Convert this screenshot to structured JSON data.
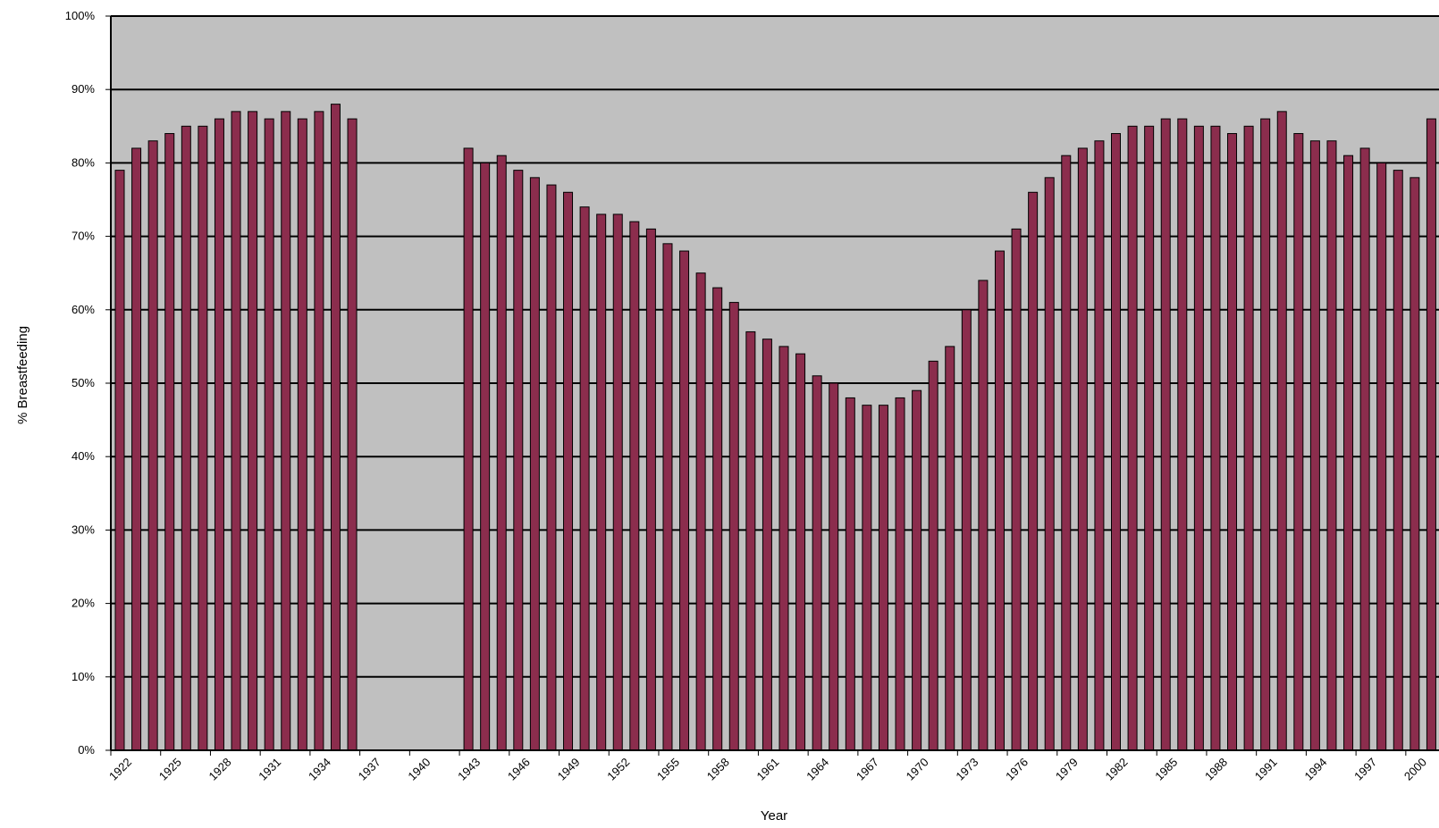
{
  "chart_data": {
    "type": "bar",
    "title": "",
    "xlabel": "Year",
    "ylabel": "% Breastfeeding",
    "ylim": [
      0,
      100
    ],
    "y_ticks": [
      "0%",
      "10%",
      "20%",
      "30%",
      "40%",
      "50%",
      "60%",
      "70%",
      "80%",
      "90%",
      "100%"
    ],
    "y_tick_values": [
      0,
      10,
      20,
      30,
      40,
      50,
      60,
      70,
      80,
      90,
      100
    ],
    "x_range": [
      1922,
      2002
    ],
    "x_ticks": [
      "1922",
      "1925",
      "1928",
      "1931",
      "1934",
      "1937",
      "1940",
      "1943",
      "1946",
      "1949",
      "1952",
      "1955",
      "1958",
      "1961",
      "1964",
      "1967",
      "1970",
      "1973",
      "1976",
      "1979",
      "1982",
      "1985",
      "1988",
      "1991",
      "1994",
      "1997",
      "2000"
    ],
    "x_tick_values": [
      1922,
      1925,
      1928,
      1931,
      1934,
      1937,
      1940,
      1943,
      1946,
      1949,
      1952,
      1955,
      1958,
      1961,
      1964,
      1967,
      1970,
      1973,
      1976,
      1979,
      1982,
      1985,
      1988,
      1991,
      1994,
      1997,
      2000
    ],
    "grid": true,
    "legend": "none",
    "colors": {
      "bar": "#8b2d4d",
      "bar_stroke": "#000000",
      "plot_background": "#c0c0c0",
      "gridline": "#000000"
    },
    "x": [
      1922,
      1923,
      1924,
      1925,
      1926,
      1927,
      1928,
      1929,
      1930,
      1931,
      1932,
      1933,
      1934,
      1935,
      1936,
      1943,
      1944,
      1945,
      1946,
      1947,
      1948,
      1949,
      1950,
      1951,
      1952,
      1953,
      1954,
      1955,
      1956,
      1957,
      1958,
      1959,
      1960,
      1961,
      1962,
      1963,
      1964,
      1965,
      1966,
      1967,
      1968,
      1969,
      1970,
      1971,
      1972,
      1973,
      1974,
      1975,
      1976,
      1977,
      1978,
      1979,
      1980,
      1981,
      1982,
      1983,
      1984,
      1985,
      1986,
      1987,
      1988,
      1989,
      1990,
      1991,
      1992,
      1993,
      1994,
      1995,
      1996,
      1997,
      1998,
      1999,
      2000,
      2001
    ],
    "values": [
      79,
      82,
      83,
      84,
      85,
      85,
      86,
      87,
      87,
      86,
      87,
      86,
      87,
      88,
      86,
      82,
      80,
      81,
      79,
      78,
      77,
      76,
      74,
      73,
      73,
      72,
      71,
      69,
      68,
      65,
      63,
      61,
      57,
      56,
      55,
      54,
      51,
      50,
      48,
      47,
      47,
      48,
      49,
      53,
      55,
      60,
      64,
      68,
      71,
      76,
      78,
      81,
      82,
      83,
      84,
      85,
      85,
      86,
      86,
      85,
      85,
      84,
      85,
      86,
      87,
      84,
      83,
      83,
      81,
      82,
      80,
      79,
      78,
      86
    ]
  }
}
